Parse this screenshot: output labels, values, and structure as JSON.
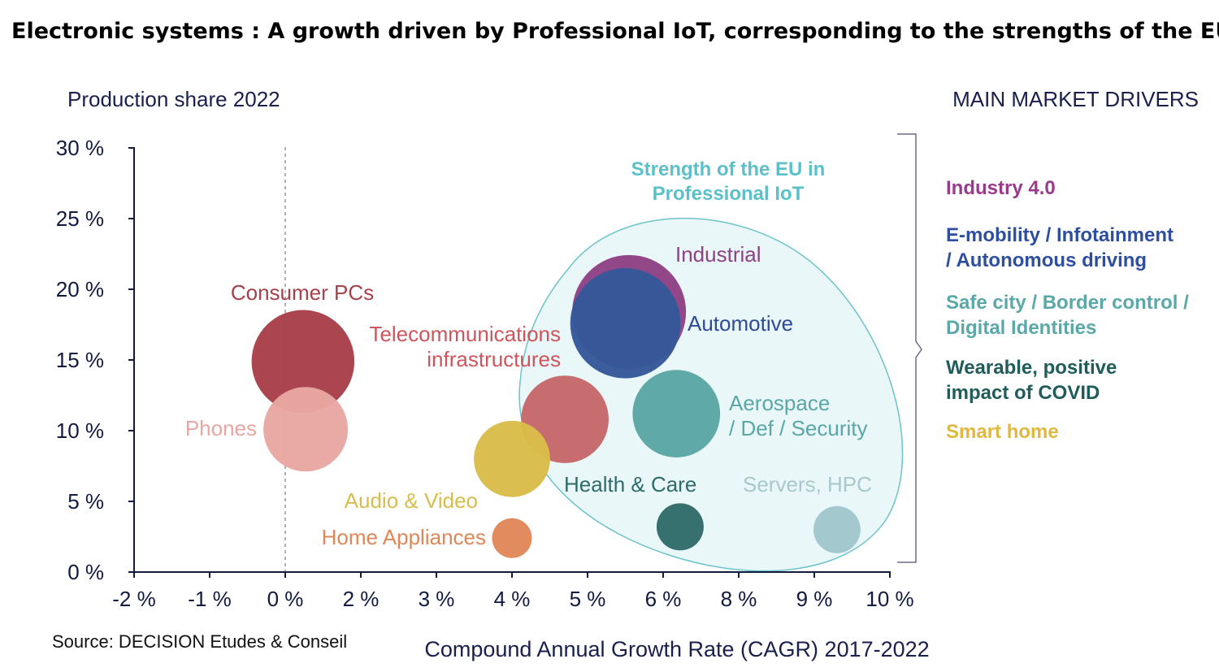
{
  "header": {
    "title": "Electronic systems : A growth driven by Professional IoT, corresponding to the strengths of the EU"
  },
  "source": "Source: DECISION Etudes & Conseil",
  "chart_data": {
    "type": "scatter",
    "subtype": "bubble",
    "title": "Electronic systems : A growth driven by Professional IoT, corresponding to the strengths of the EU",
    "ylabel": "Production share 2022",
    "xlabel": "Compound Annual Growth Rate (CAGR) 2017-2022",
    "x_ticks": [
      -2,
      -1,
      0,
      2,
      3,
      4,
      5,
      6,
      8,
      9,
      10
    ],
    "x_tick_labels": [
      "-2 %",
      "-1 %",
      "0 %",
      "2 %",
      "3 %",
      "4 %",
      "5 %",
      "6 %",
      "8 %",
      "9 %",
      "10 %"
    ],
    "y_ticks": [
      0,
      5,
      10,
      15,
      20,
      25,
      30
    ],
    "y_tick_labels": [
      "0 %",
      "5 %",
      "10 %",
      "15 %",
      "20 %",
      "25 %",
      "30 %"
    ],
    "ylim": [
      0,
      30
    ],
    "xlim": [
      -2,
      10
    ],
    "grid": false,
    "reference_line_x": 0,
    "series": [
      {
        "name": "Consumer PCs",
        "x": 0.47,
        "y": 14.9,
        "size": 40,
        "color": "#a8404a",
        "label_color": "#a8404a"
      },
      {
        "name": "Phones",
        "x": 0.54,
        "y": 10.1,
        "size": 27,
        "color": "#e8a6a1",
        "label_color": "#e8a6a1"
      },
      {
        "name": "Telecommunications infrastructures",
        "label_lines": [
          "Telecommunications",
          "infrastructures"
        ],
        "x": 4.7,
        "y": 10.8,
        "size": 29,
        "color": "#c6686a",
        "label_color": "#d0545c"
      },
      {
        "name": "Audio & Video",
        "x": 4.0,
        "y": 8.0,
        "size": 22,
        "color": "#d9bd4a",
        "label_color": "#d9bd4a"
      },
      {
        "name": "Home Appliances",
        "x": 4.0,
        "y": 2.4,
        "size": 6,
        "color": "#e0875a",
        "label_color": "#e0875a"
      },
      {
        "name": "Industrial",
        "x": 5.55,
        "y": 18.4,
        "size": 49,
        "color": "#8e4185",
        "label_color": "#8e4185"
      },
      {
        "name": "Automotive",
        "x": 5.5,
        "y": 17.6,
        "size": 46,
        "color": "#355899",
        "label_color": "#2e4a98"
      },
      {
        "name": "Aerospace / Def / Security",
        "label_lines": [
          "Aerospace",
          "/ Def / Security"
        ],
        "x": 6.35,
        "y": 11.2,
        "size": 29,
        "color": "#5ba6a6",
        "label_color": "#5ba6a6"
      },
      {
        "name": "Health & Care",
        "x": 6.45,
        "y": 3.2,
        "size": 8.4,
        "color": "#2f6b6a",
        "label_color": "#2f6b6a"
      },
      {
        "name": "Servers, HPC",
        "x": 9.3,
        "y": 3.0,
        "size": 8.4,
        "color": "#a0c7cc",
        "label_color": "#a8c8cc"
      }
    ],
    "annotation": {
      "text_lines": [
        "Strength of the EU in",
        "Professional IoT"
      ],
      "color": "#5bc0c8",
      "fill": "#e9f7f8"
    },
    "drivers": {
      "title": "MAIN MARKET DRIVERS",
      "items": [
        {
          "lines": [
            "Industry 4.0"
          ],
          "color": "#9b3a8c"
        },
        {
          "lines": [
            "E-mobility / Infotainment",
            "/ Autonomous driving"
          ],
          "color": "#2e4fa0"
        },
        {
          "lines": [
            "Safe city / Border control /",
            "Digital Identities"
          ],
          "color": "#5aa8a8"
        },
        {
          "lines": [
            "Wearable, positive",
            "impact of COVID"
          ],
          "color": "#1f5c5a"
        },
        {
          "lines": [
            "Smart home"
          ],
          "color": "#e0b840"
        }
      ]
    }
  }
}
